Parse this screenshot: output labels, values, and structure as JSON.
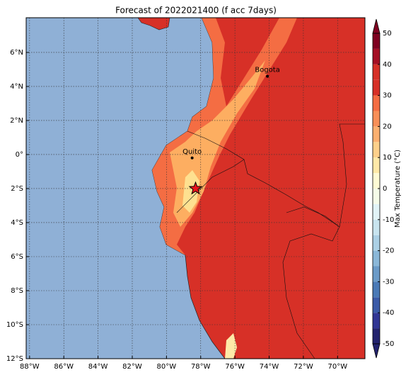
{
  "map": {
    "title": "Forecast of 2022021400 (f acc 7days)",
    "xlim": [
      -88.2,
      -68.4
    ],
    "ylim": [
      -12,
      8.04
    ],
    "xticks": [
      {
        "value": -88,
        "label": "88°W"
      },
      {
        "value": -86,
        "label": "86°W"
      },
      {
        "value": -84,
        "label": "84°W"
      },
      {
        "value": -82,
        "label": "82°W"
      },
      {
        "value": -80,
        "label": "80°W"
      },
      {
        "value": -78,
        "label": "78°W"
      },
      {
        "value": -76,
        "label": "76°W"
      },
      {
        "value": -74,
        "label": "74°W"
      },
      {
        "value": -72,
        "label": "72°W"
      },
      {
        "value": -70,
        "label": "70°W"
      }
    ],
    "yticks": [
      {
        "value": -12,
        "label": "12°S"
      },
      {
        "value": -10,
        "label": "10°S"
      },
      {
        "value": -8,
        "label": "8°S"
      },
      {
        "value": -6,
        "label": "6°S"
      },
      {
        "value": -4,
        "label": "4°S"
      },
      {
        "value": -2,
        "label": "2°S"
      },
      {
        "value": 0,
        "label": "0°"
      },
      {
        "value": 2,
        "label": "2°N"
      },
      {
        "value": 4,
        "label": "4°N"
      },
      {
        "value": 6,
        "label": "6°N"
      }
    ],
    "cities": [
      {
        "name": "Bogota",
        "lon": -74.1,
        "lat": 4.6
      },
      {
        "name": "Quito",
        "lon": -78.5,
        "lat": -0.2
      }
    ],
    "star": {
      "lon": -78.3,
      "lat": -2.0,
      "color": "#e8141b"
    }
  },
  "colorbar": {
    "label": "Max Temperature (°C)",
    "lim": [
      -50,
      50
    ],
    "ticks": [
      -50,
      -40,
      -30,
      -20,
      -10,
      0,
      10,
      20,
      30,
      40,
      50
    ],
    "bounds": [
      -50,
      -45,
      -40,
      -35,
      -30,
      -25,
      -20,
      -15,
      -10,
      -5,
      0,
      5,
      10,
      15,
      20,
      25,
      30,
      35,
      40,
      45,
      50
    ],
    "colors": [
      "#23236e",
      "#313695",
      "#3b5ba8",
      "#4a7ab7",
      "#6b9bc8",
      "#8bb8d8",
      "#abd0e5",
      "#c8e4ef",
      "#e2f3f6",
      "#f5fbe8",
      "#fefbd5",
      "#fee9a8",
      "#fdd08a",
      "#fcb070",
      "#f88f58",
      "#f46d43",
      "#d73027",
      "#d73027",
      "#a50f24",
      "#7f0020"
    ]
  }
}
